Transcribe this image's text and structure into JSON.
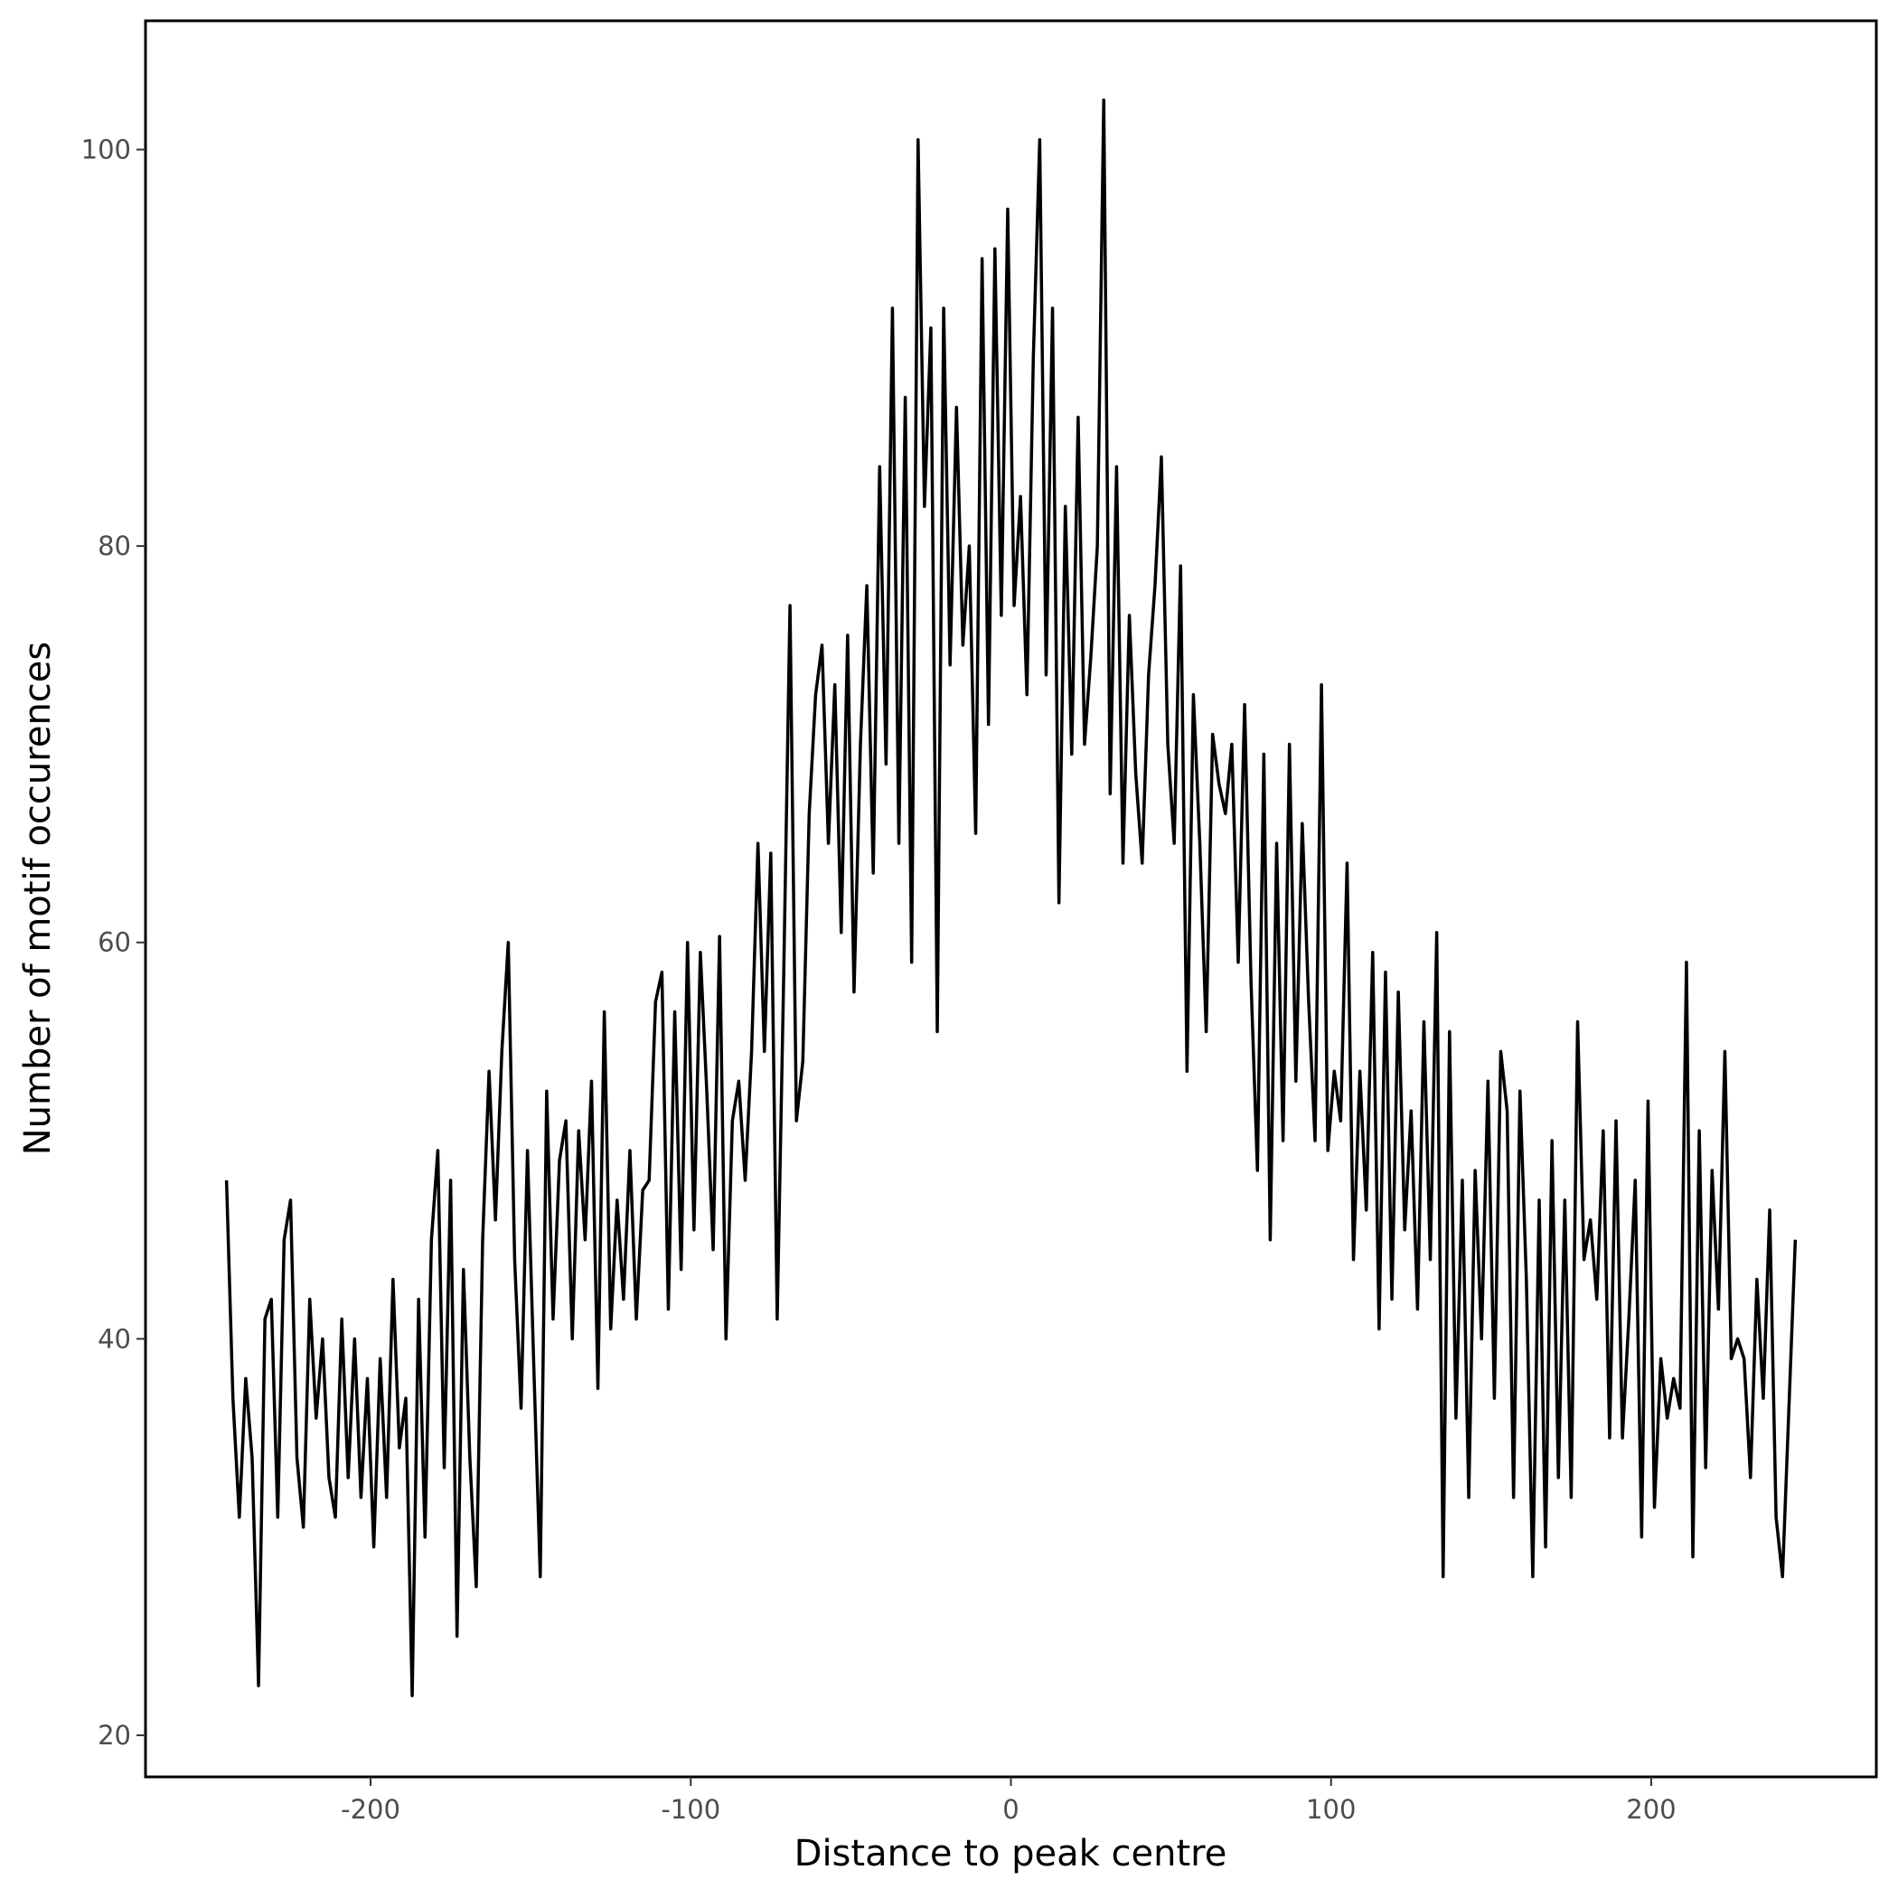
{
  "chart_data": {
    "type": "line",
    "x_label": "Distance to peak centre",
    "y_label": "Number of motif occurences",
    "xlim": [
      -270.3,
      270.3
    ],
    "ylim": [
      17.9,
      106.5
    ],
    "xticks": [
      -200,
      -100,
      0,
      100,
      200
    ],
    "yticks": [
      20,
      40,
      60,
      80,
      100
    ],
    "grid": false,
    "series": [
      {
        "color": "#000000",
        "x": [
          -245,
          -243,
          -241,
          -239,
          -237,
          -235,
          -233,
          -231,
          -229,
          -227,
          -225,
          -223,
          -221,
          -219,
          -217,
          -215,
          -213,
          -211,
          -209,
          -207,
          -205,
          -203,
          -201,
          -199,
          -197,
          -195,
          -193,
          -191,
          -189,
          -187,
          -185,
          -183,
          -181,
          -179,
          -177,
          -175,
          -173,
          -171,
          -169,
          -167,
          -165,
          -163,
          -161,
          -159,
          -157,
          -155,
          -153,
          -151,
          -149,
          -147,
          -145,
          -143,
          -141,
          -139,
          -137,
          -135,
          -133,
          -131,
          -129,
          -127,
          -125,
          -123,
          -121,
          -119,
          -117,
          -115,
          -113,
          -111,
          -109,
          -107,
          -105,
          -103,
          -101,
          -99,
          -97,
          -95,
          -93,
          -91,
          -89,
          -87,
          -85,
          -83,
          -81,
          -79,
          -77,
          -75,
          -73,
          -71,
          -69,
          -67,
          -65,
          -63,
          -61,
          -59,
          -57,
          -55,
          -53,
          -51,
          -49,
          -47,
          -45,
          -43,
          -41,
          -39,
          -37,
          -35,
          -33,
          -31,
          -29,
          -27,
          -25,
          -23,
          -21,
          -19,
          -17,
          -15,
          -13,
          -11,
          -9,
          -7,
          -5,
          -3,
          -1,
          1,
          3,
          5,
          7,
          9,
          11,
          13,
          15,
          17,
          19,
          21,
          23,
          25,
          27,
          29,
          31,
          33,
          35,
          37,
          39,
          41,
          43,
          45,
          47,
          49,
          51,
          53,
          55,
          57,
          59,
          61,
          63,
          65,
          67,
          69,
          71,
          73,
          75,
          77,
          79,
          81,
          83,
          85,
          87,
          89,
          91,
          93,
          95,
          97,
          99,
          101,
          103,
          105,
          107,
          109,
          111,
          113,
          115,
          117,
          119,
          121,
          123,
          125,
          127,
          129,
          131,
          133,
          135,
          137,
          139,
          141,
          143,
          145,
          147,
          149,
          151,
          153,
          155,
          157,
          159,
          161,
          163,
          165,
          167,
          169,
          171,
          173,
          175,
          177,
          179,
          181,
          183,
          185,
          187,
          189,
          191,
          193,
          195,
          197,
          199,
          201,
          203,
          205,
          207,
          209,
          211,
          213,
          215,
          217,
          219,
          221,
          223,
          225,
          227,
          229,
          231,
          233,
          235,
          237,
          239,
          241,
          243,
          245
        ],
        "values": [
          48,
          37,
          31,
          38,
          34,
          22.5,
          41,
          42,
          31,
          45,
          47,
          34,
          30.5,
          42,
          36,
          40,
          33,
          31,
          41,
          33,
          40,
          32,
          38,
          29.5,
          39,
          32,
          43,
          34.5,
          37,
          22,
          42,
          30,
          45,
          49.5,
          33.5,
          48,
          25,
          43.5,
          34,
          27.5,
          45,
          53.5,
          46,
          54.5,
          60,
          44,
          36.5,
          49.5,
          38.5,
          28,
          52.5,
          41,
          49,
          51,
          40,
          50.5,
          45,
          53,
          37.5,
          56.5,
          40.5,
          47,
          42,
          49.5,
          41,
          47.5,
          48,
          57,
          58.5,
          41.5,
          56.5,
          43.5,
          60,
          45.5,
          59.5,
          52.5,
          44.5,
          60.3,
          40,
          51,
          53,
          48,
          54.5,
          65,
          54.5,
          64.5,
          41,
          58,
          77,
          51,
          54,
          66.5,
          72.5,
          75,
          65,
          73,
          60.5,
          75.5,
          57.5,
          70,
          78,
          63.5,
          84,
          69,
          92,
          65,
          87.5,
          59,
          100.5,
          82,
          91,
          55.5,
          92,
          74,
          87,
          75,
          80,
          65.5,
          94.5,
          71,
          95,
          76.5,
          97,
          77,
          82.5,
          72.5,
          89.5,
          100.5,
          73.5,
          92,
          62,
          82,
          69.5,
          86.5,
          70,
          74.5,
          80,
          102.5,
          67.5,
          84,
          64,
          76.5,
          68.5,
          64,
          73.5,
          78,
          84.5,
          70,
          65,
          79,
          53.5,
          72.5,
          65,
          55.5,
          70.5,
          68,
          66.5,
          70,
          59,
          72,
          58,
          48.5,
          69.5,
          45,
          65,
          50,
          70,
          53,
          66,
          57,
          50,
          73,
          49.5,
          53.5,
          51,
          64,
          44,
          53.5,
          46.5,
          59.5,
          40.5,
          58.5,
          42,
          57.5,
          45.5,
          51.5,
          41.5,
          56,
          44,
          60.5,
          28,
          55.5,
          36,
          48,
          32,
          48.5,
          40,
          53,
          37,
          54.5,
          51.5,
          32,
          52.5,
          43,
          28,
          47,
          29.5,
          50,
          33,
          47,
          32,
          56,
          44,
          46,
          42,
          50.5,
          35,
          51,
          35,
          41,
          48,
          30,
          52,
          31.5,
          39,
          36,
          38,
          36.5,
          59,
          29,
          50.5,
          33.5,
          48.5,
          41.5,
          54.5,
          39,
          40,
          39,
          33,
          43,
          37,
          46.5,
          31,
          28,
          36.5,
          45
        ]
      }
    ]
  }
}
